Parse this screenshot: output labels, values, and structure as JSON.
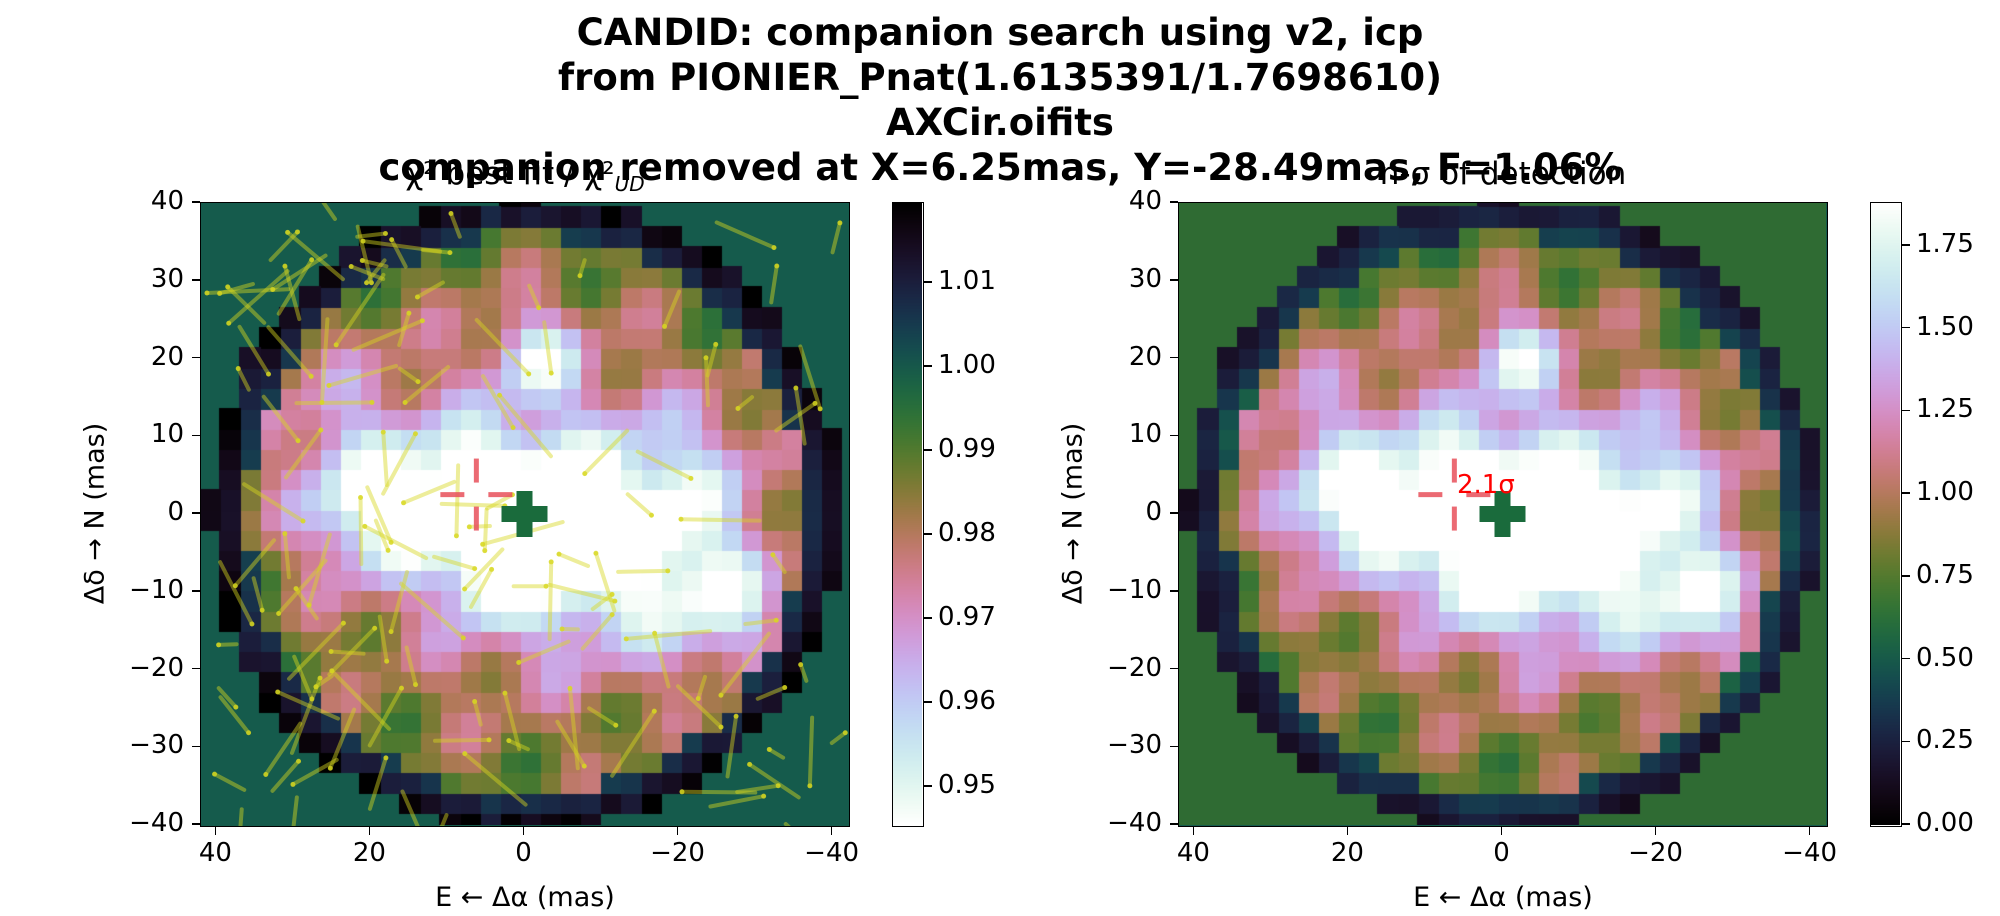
{
  "figure": {
    "title_lines": [
      "CANDID: companion search using v2, icp",
      "from PIONIER_Pnat(1.6135391/1.7698610)",
      "AXCir.oifits",
      "companion removed at X=6.25mas, Y=-28.49mas, F=1.06%"
    ]
  },
  "chart_data": [
    {
      "type": "heatmap",
      "title": "χ² best fit / χ²_UD",
      "xlabel": "E ← Δα (mas)",
      "ylabel": "Δδ → N (mas)",
      "xlim": [
        42,
        -42
      ],
      "ylim": [
        -40,
        40
      ],
      "xticks": [
        "40",
        "20",
        "0",
        "−20",
        "−40"
      ],
      "yticks": [
        "40",
        "30",
        "20",
        "10",
        "0",
        "−10",
        "−20",
        "−30",
        "−40"
      ],
      "grid": false,
      "colormap": "cubehelix_r",
      "clim": [
        0.9455,
        1.0195
      ],
      "colorbar_ticks": [
        "1.01",
        "1.00",
        "0.99",
        "0.98",
        "0.97",
        "0.96",
        "0.95"
      ],
      "colorbar_tick_values": [
        1.01,
        1.0,
        0.99,
        0.98,
        0.97,
        0.96,
        0.95
      ],
      "field_radius_mas": 41,
      "minima": [
        {
          "x": 6.25,
          "y": 2.5,
          "value": 0.949
        },
        {
          "x": 20,
          "y": 0.5,
          "value": 0.951
        },
        {
          "x": -12,
          "y": -2.5,
          "value": 0.953
        },
        {
          "x": -1.5,
          "y": 20.5,
          "value": 0.958
        },
        {
          "x": -26,
          "y": -11.5,
          "value": 0.956
        },
        {
          "x": 5,
          "y": -9.5,
          "value": 0.957
        }
      ],
      "star_marker": {
        "x": 0,
        "y": 0,
        "marker": "plus",
        "color": "#1a6b3c"
      },
      "best_companion_marker": {
        "x": 6.25,
        "y": 2.5,
        "marker": "cross",
        "color": "#e8505b"
      },
      "fit_tracks_color": "#d8d820"
    },
    {
      "type": "heatmap",
      "title": "n-σ of detection",
      "xlabel": "E ← Δα (mas)",
      "ylabel": "Δδ → N (mas)",
      "xlim": [
        42,
        -42
      ],
      "ylim": [
        -40,
        40
      ],
      "xticks": [
        "40",
        "20",
        "0",
        "−20",
        "−40"
      ],
      "yticks": [
        "40",
        "30",
        "20",
        "10",
        "0",
        "−10",
        "−20",
        "−30",
        "−40"
      ],
      "grid": false,
      "colormap": "cubehelix",
      "clim": [
        0.0,
        1.88
      ],
      "colorbar_ticks": [
        "1.75",
        "1.50",
        "1.25",
        "1.00",
        "0.75",
        "0.50",
        "0.25",
        "0.00"
      ],
      "colorbar_tick_values": [
        1.75,
        1.5,
        1.25,
        1.0,
        0.75,
        0.5,
        0.25,
        0.0
      ],
      "annotation": {
        "text": "2.1σ",
        "x": 6.25,
        "y": 2.5,
        "color": "#ff0000"
      },
      "star_marker": {
        "x": 0,
        "y": 0,
        "marker": "plus",
        "color": "#1a6b3c"
      },
      "best_companion_marker": {
        "x": 6.25,
        "y": 2.5,
        "marker": "cross",
        "color": "#e8505b"
      }
    }
  ]
}
